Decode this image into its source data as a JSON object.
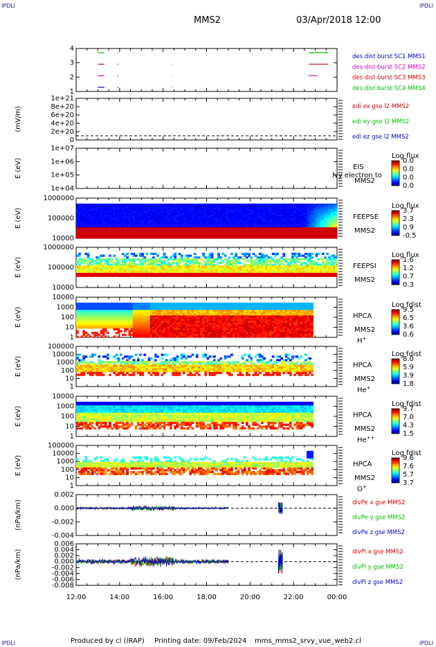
{
  "header": {
    "corner_label": "IPDLI",
    "mission": "MMS2",
    "datetime": "03/Apr/2018 12:00"
  },
  "footer": {
    "produced_by": "Produced by cl (IRAP)",
    "printing_date": "Printing date: 09/Feb/2024",
    "file": "mms_mms2_srvy_vue_web2.cl"
  },
  "chart_data": {
    "type": "multi-panel time series",
    "x_ticks": [
      "12:00",
      "14:00",
      "16:00",
      "18:00",
      "20:00",
      "22:00",
      "00:00"
    ],
    "x_range_hours": [
      12,
      24
    ],
    "panels": [
      {
        "id": "burst",
        "type": "event-strip",
        "yticks": [
          "4",
          "3",
          "2",
          "1"
        ],
        "legend": [
          {
            "text": "des dist burst SC1 MMS1",
            "color": "#0000cc"
          },
          {
            "text": "des dist burst SC2 MMS2",
            "color": "#cc00cc"
          },
          {
            "text": "des dist burst SC3 MMS3",
            "color": "#cc0000"
          },
          {
            "text": "des dist burst SC4 MMS4",
            "color": "#00bb00"
          }
        ],
        "segments": [
          {
            "sc": 4,
            "color": "#00bb00",
            "t": [
              [
                13.0,
                13.3
              ],
              [
                13.9,
                13.95
              ],
              [
                16.4,
                16.42
              ],
              [
                22.7,
                23.6
              ]
            ]
          },
          {
            "sc": 3,
            "color": "#cc0000",
            "t": [
              [
                13.0,
                13.3
              ],
              [
                13.9,
                13.95
              ],
              [
                16.4,
                16.42
              ],
              [
                22.7,
                23.6
              ]
            ]
          },
          {
            "sc": 2,
            "color": "#cc00cc",
            "t": [
              [
                13.0,
                13.3
              ],
              [
                13.9,
                13.95
              ],
              [
                16.4,
                16.42
              ],
              [
                22.7,
                23.1
              ]
            ]
          },
          {
            "sc": 1,
            "color": "#0000cc",
            "t": [
              [
                13.0,
                13.3
              ],
              [
                13.9,
                13.95
              ],
              [
                16.4,
                16.42
              ]
            ]
          }
        ]
      },
      {
        "id": "edi",
        "type": "line",
        "ylabel": "(mV/m)",
        "yticks": [
          "1e+21",
          "8e+20",
          "6e+20",
          "4e+20",
          "2e+20",
          "0"
        ],
        "legend": [
          {
            "text": "edi ex gse l2 MMS2",
            "color": "#cc0000"
          },
          {
            "text": "edi ey gse l2 MMS2",
            "color": "#00bb00"
          },
          {
            "text": "edi ez gse l2 MMS2",
            "color": "#0000cc"
          }
        ]
      },
      {
        "id": "eis",
        "type": "heatmap",
        "ylabel": "E (eV)",
        "yticks": [
          "1e+07",
          "1e+06",
          "1e+05",
          "1e+04"
        ],
        "instrument": "EIS",
        "sub": "MMS2",
        "overlay": "lvy electron to",
        "cbar_title": "Log flux",
        "cbar_ticks": [
          "0.0",
          "0.0",
          "0.0",
          "0.0"
        ]
      },
      {
        "id": "feepse",
        "type": "heatmap",
        "ylabel": "E (eV)",
        "yticks": [
          "1000000",
          "100000",
          "10000"
        ],
        "instrument": "FEEPSE",
        "sub": "MMS2",
        "cbar_title": "Log flux",
        "cbar_ticks": [
          "3.7",
          "2.3",
          "0.9",
          "-0.5"
        ]
      },
      {
        "id": "feepsi",
        "type": "heatmap",
        "ylabel": "E (eV)",
        "yticks": [
          "1000000",
          "100000",
          "10000"
        ],
        "instrument": "FEEPSI",
        "sub": "MMS2",
        "cbar_title": "Log flux",
        "cbar_ticks": [
          "1.6",
          "1.2",
          "0.7",
          "0.3"
        ]
      },
      {
        "id": "hpca_h",
        "type": "heatmap",
        "ylabel": "E (eV)",
        "yticks": [
          "10000",
          "1000",
          "100",
          "10",
          "1"
        ],
        "instrument": "HPCA",
        "sub": "MMS2",
        "species": "H",
        "species_sup": "+",
        "cbar_title": "Log fdist",
        "cbar_ticks": [
          "9.5",
          "6.5",
          "3.6",
          "0.6"
        ]
      },
      {
        "id": "hpca_he",
        "type": "heatmap",
        "ylabel": "E (eV)",
        "yticks": [
          "100000",
          "10000",
          "1000",
          "100",
          "10",
          "1"
        ],
        "instrument": "HPCA",
        "sub": "MMS2",
        "species": "He",
        "species_sup": "+",
        "cbar_title": "Log fdist",
        "cbar_ticks": [
          "8.0",
          "5.9",
          "3.9",
          "1.8"
        ]
      },
      {
        "id": "hpca_he2",
        "type": "heatmap",
        "ylabel": "E (eV)",
        "yticks": [
          "10000",
          "1000",
          "100",
          "10",
          "1"
        ],
        "instrument": "HPCA",
        "sub": "MMS2",
        "species": "He",
        "species_sup": "++",
        "cbar_title": "Log fdist",
        "cbar_ticks": [
          "9.7",
          "7.0",
          "4.3",
          "1.5"
        ]
      },
      {
        "id": "hpca_o",
        "type": "heatmap",
        "ylabel": "E (eV)",
        "yticks": [
          "100000",
          "10000",
          "1000",
          "100",
          "10",
          "1"
        ],
        "instrument": "HPCA",
        "sub": "MMS2",
        "species": "O",
        "species_sup": "+",
        "cbar_title": "Log fdist",
        "cbar_ticks": [
          "9.6",
          "7.6",
          "5.7",
          "3.7"
        ]
      },
      {
        "id": "divpe",
        "type": "line",
        "ylabel": "(nPa/km)",
        "yticks": [
          "0.002",
          "0.000",
          "-0.002",
          "-0.004"
        ],
        "ytick_values": [
          0.002,
          0.0,
          -0.002,
          -0.004
        ],
        "legend": [
          {
            "text": "divPe x gse MMS2",
            "color": "#cc0000"
          },
          {
            "text": "divPe y gse MMS2",
            "color": "#00bb00"
          },
          {
            "text": "divPe z gse MMS2",
            "color": "#0000cc"
          }
        ]
      },
      {
        "id": "divpi",
        "type": "line",
        "ylabel": "(nPa/km)",
        "yticks": [
          "0.006",
          "0.004",
          "0.002",
          "0.000",
          "-0.002",
          "-0.004",
          "-0.006",
          "-0.008"
        ],
        "ytick_values": [
          0.006,
          0.004,
          0.002,
          0.0,
          -0.002,
          -0.004,
          -0.006,
          -0.008
        ],
        "legend": [
          {
            "text": "divPi x gse MMS2",
            "color": "#cc0000"
          },
          {
            "text": "divPi y gse MMS2",
            "color": "#00bb00"
          },
          {
            "text": "divPi z gse MMS2",
            "color": "#0000cc"
          }
        ]
      }
    ]
  }
}
